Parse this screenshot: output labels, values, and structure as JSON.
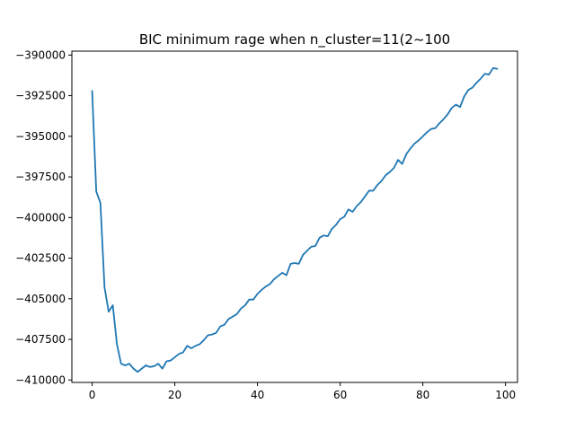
{
  "chart_data": {
    "type": "line",
    "title": "BIC minimum rage when n_cluster=11(2~100",
    "xlabel": "",
    "ylabel": "",
    "xlim": [
      -4.9,
      102.9
    ],
    "ylim": [
      -410150,
      -389760
    ],
    "grid": false,
    "legend": "none",
    "line_color": "#1f77b4",
    "x_ticks": [
      0,
      20,
      40,
      60,
      80,
      100
    ],
    "x_tick_labels": [
      "0",
      "20",
      "40",
      "60",
      "80",
      "100"
    ],
    "y_ticks": [
      -390000,
      -392500,
      -395000,
      -397500,
      -400000,
      -402500,
      -405000,
      -407500,
      -410000
    ],
    "y_tick_labels": [
      "−390000",
      "−392500",
      "−395000",
      "−397500",
      "−400000",
      "−402500",
      "−405000",
      "−407500",
      "−410000"
    ],
    "series": [
      {
        "name": "",
        "x": [
          0,
          1,
          2,
          3,
          4,
          5,
          6,
          7,
          8,
          9,
          10,
          11,
          12,
          13,
          14,
          15,
          16,
          17,
          18,
          19,
          20,
          21,
          22,
          23,
          24,
          25,
          26,
          27,
          28,
          29,
          30,
          31,
          32,
          33,
          34,
          35,
          36,
          37,
          38,
          39,
          40,
          41,
          42,
          43,
          44,
          45,
          46,
          47,
          48,
          49,
          50,
          51,
          52,
          53,
          54,
          55,
          56,
          57,
          58,
          59,
          60,
          61,
          62,
          63,
          64,
          65,
          66,
          67,
          68,
          69,
          70,
          71,
          72,
          73,
          74,
          75,
          76,
          77,
          78,
          79,
          80,
          81,
          82,
          83,
          84,
          85,
          86,
          87,
          88,
          89,
          90,
          91,
          92,
          93,
          94,
          95,
          96,
          97,
          98
        ],
        "y": [
          -392200,
          -398400,
          -399100,
          -404300,
          -405800,
          -405400,
          -407800,
          -409000,
          -409100,
          -409000,
          -409300,
          -409500,
          -409300,
          -409100,
          -409200,
          -409150,
          -409000,
          -409300,
          -408850,
          -408800,
          -408600,
          -408400,
          -408300,
          -407900,
          -408050,
          -407900,
          -407800,
          -407550,
          -407250,
          -407200,
          -407100,
          -406700,
          -406600,
          -406250,
          -406100,
          -405950,
          -405600,
          -405400,
          -405050,
          -405050,
          -404700,
          -404450,
          -404250,
          -404100,
          -403800,
          -403600,
          -403400,
          -403550,
          -402850,
          -402800,
          -402850,
          -402300,
          -402050,
          -401800,
          -401750,
          -401250,
          -401100,
          -401150,
          -400700,
          -400450,
          -400100,
          -399950,
          -399500,
          -399650,
          -399300,
          -399050,
          -398700,
          -398350,
          -398350,
          -398000,
          -397750,
          -397400,
          -397200,
          -396950,
          -396450,
          -396700,
          -396100,
          -395750,
          -395450,
          -395250,
          -395000,
          -394750,
          -394550,
          -394500,
          -394200,
          -393950,
          -393650,
          -393250,
          -393050,
          -393200,
          -392550,
          -392150,
          -392000,
          -391700,
          -391450,
          -391150,
          -391200,
          -390800,
          -390850
        ]
      }
    ]
  }
}
